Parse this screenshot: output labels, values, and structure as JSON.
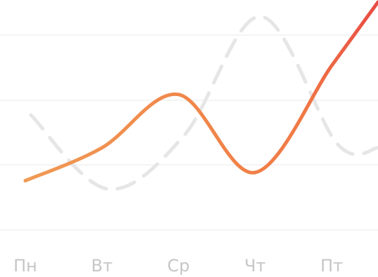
{
  "chart_data": {
    "type": "line",
    "categories": [
      "Пн",
      "Вт",
      "Ср",
      "Чт",
      "Пт"
    ],
    "series": [
      {
        "values": [
          1.2,
          2.0,
          3.3,
          1.4,
          4.0
        ],
        "style": "solid",
        "color": "#ef8245",
        "end_color": "#e84b43"
      },
      {
        "values": [
          2.8,
          1.0,
          2.3,
          5.2,
          2.1
        ],
        "style": "dashed",
        "color": "#e6e6e6"
      }
    ],
    "grid": true,
    "legend": "none",
    "ylim": [
      0,
      5.6
    ]
  },
  "colors": {
    "grid": "#f0f0f0",
    "tick_label": "#c6c6c6"
  }
}
